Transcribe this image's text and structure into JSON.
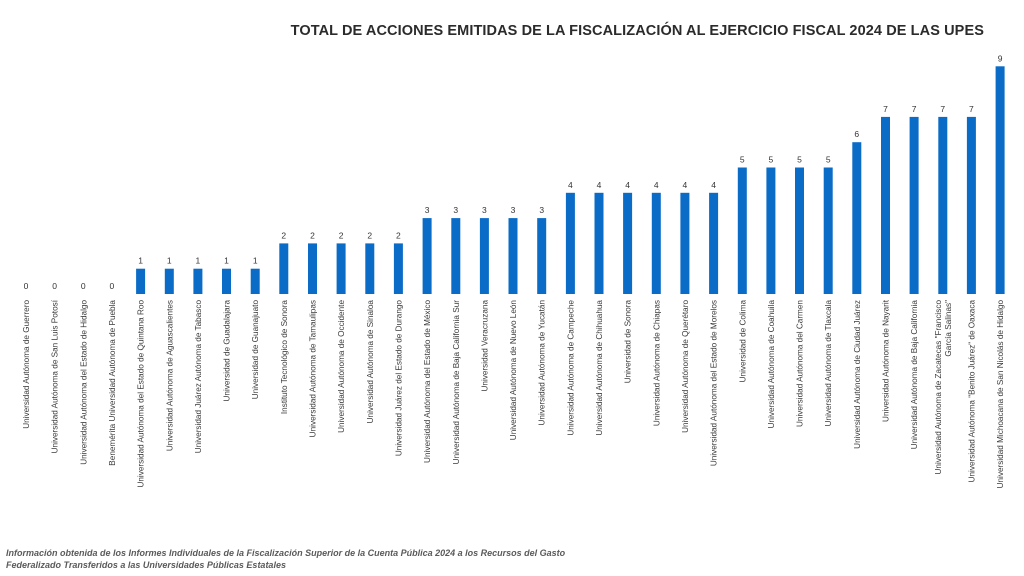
{
  "chart_data": {
    "type": "bar",
    "title": "TOTAL DE ACCIONES EMITIDAS DE LA FISCALIZACIÓN AL EJERCICIO FISCAL 2024 DE LAS UPES",
    "xlabel": "",
    "ylabel": "",
    "ylim": [
      0,
      9
    ],
    "grid": false,
    "legend": "none",
    "colors": {
      "bar": "#0a6cc7"
    },
    "categories": [
      [
        "Universidad Autónoma de Guerrero"
      ],
      [
        "Universidad Autónoma de San Luis Potosí"
      ],
      [
        "Universidad Autónoma del Estado de Hidalgo"
      ],
      [
        "Benemérita Universidad Autónoma de Puebla"
      ],
      [
        "Universidad Autónoma del Estado de Quintana Roo"
      ],
      [
        "Universidad Autónoma de Aguascalientes"
      ],
      [
        "Universidad Juárez Autónoma de Tabasco"
      ],
      [
        "Universidad de Guadalajara"
      ],
      [
        "Universidad de Guanajuato"
      ],
      [
        "Instituto Tecnológico de Sonora"
      ],
      [
        "Universidad Autónoma de Tamaulipas"
      ],
      [
        "Universidad Autónoma de Occidente"
      ],
      [
        "Universidad Autónoma de Sinaloa"
      ],
      [
        "Universidad Juárez del Estado de Durango"
      ],
      [
        "Universidad Autónoma del Estado de México"
      ],
      [
        "Universidad Autónoma de Baja California Sur"
      ],
      [
        "Universidad Veracruzana"
      ],
      [
        "Universidad Autónoma de Nuevo León"
      ],
      [
        "Universidad Autónoma de Yucatán"
      ],
      [
        "Universidad Autónoma de Campeche"
      ],
      [
        "Universidad Autónoma de Chihuahua"
      ],
      [
        "Universidad de Sonora"
      ],
      [
        "Universidad Autónoma de Chiapas"
      ],
      [
        "Universidad Autónoma de Querétaro"
      ],
      [
        "Universidad Autónoma del Estado de Morelos"
      ],
      [
        "Universidad de Colima"
      ],
      [
        "Universidad Autónoma de Coahuila"
      ],
      [
        "Universidad Autónoma del Carmen"
      ],
      [
        "Universidad Autónoma de Tlaxcala"
      ],
      [
        "Universidad Autónoma de Ciudad Juárez"
      ],
      [
        "Universidad Autónoma de Nayarit"
      ],
      [
        "Universidad Autónoma de Baja California"
      ],
      [
        "Universidad Autónoma de Zacatecas \"Francisco",
        "García Salinas\""
      ],
      [
        "Universidad Autónoma \"Benito Juárez\" de Oaxaca"
      ],
      [
        "Universidad Michoacana de San Nicolás de Hidalgo"
      ]
    ],
    "values": [
      0,
      0,
      0,
      0,
      1,
      1,
      1,
      1,
      1,
      2,
      2,
      2,
      2,
      2,
      3,
      3,
      3,
      3,
      3,
      4,
      4,
      4,
      4,
      4,
      4,
      5,
      5,
      5,
      5,
      6,
      7,
      7,
      7,
      7,
      9
    ]
  },
  "footnote": [
    "Información obtenida de los Informes Individuales de la Fiscalización Superior de la Cuenta Pública 2024 a los Recursos del Gasto",
    "Federalizado Transferidos a las Universidades Públicas Estatales"
  ]
}
